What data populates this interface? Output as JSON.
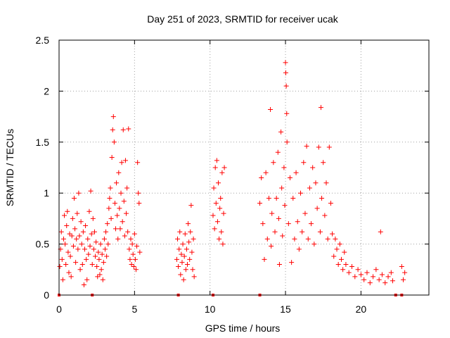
{
  "chart_data": {
    "type": "scatter",
    "title": "Day 251 of 2023, SRMTID for receiver ucak",
    "xlabel": "GPS time / hours",
    "ylabel": "SRMTID / TECUs",
    "xlim": [
      0,
      24.5
    ],
    "ylim": [
      0,
      2.5
    ],
    "xticks": [
      0,
      5,
      10,
      15,
      20
    ],
    "xtick_labels": [
      "0",
      "5",
      "10",
      "15",
      "20"
    ],
    "yticks": [
      0,
      0.5,
      1,
      1.5,
      2,
      2.5
    ],
    "ytick_labels": [
      "0",
      "0.5",
      "1",
      "1.5",
      "2",
      "2.5"
    ],
    "grid": true,
    "marker": "plus",
    "series": [
      {
        "name": "SRMTID",
        "color": "#ff0000",
        "points": [
          [
            0.05,
            0.28
          ],
          [
            0.1,
            0.45
          ],
          [
            0.15,
            0.62
          ],
          [
            0.2,
            0.35
          ],
          [
            0.25,
            0.15
          ],
          [
            0.3,
            0.55
          ],
          [
            0.35,
            0.78
          ],
          [
            0.4,
            0.5
          ],
          [
            0.45,
            0.3
          ],
          [
            0.5,
            0.68
          ],
          [
            0.55,
            0.82
          ],
          [
            0.6,
            0.42
          ],
          [
            0.65,
            0.22
          ],
          [
            0.7,
            0.6
          ],
          [
            0.75,
            0.38
          ],
          [
            0.8,
            0.18
          ],
          [
            0.85,
            0.58
          ],
          [
            0.9,
            0.75
          ],
          [
            0.95,
            0.48
          ],
          [
            1.0,
            0.95
          ],
          [
            1.05,
            0.65
          ],
          [
            1.1,
            0.32
          ],
          [
            1.15,
            0.55
          ],
          [
            1.2,
            0.8
          ],
          [
            1.25,
            0.45
          ],
          [
            1.3,
            1.0
          ],
          [
            1.35,
            0.58
          ],
          [
            1.4,
            0.25
          ],
          [
            1.45,
            0.72
          ],
          [
            1.5,
            0.5
          ],
          [
            1.55,
            0.3
          ],
          [
            1.6,
            0.62
          ],
          [
            1.65,
            0.1
          ],
          [
            1.7,
            0.45
          ],
          [
            1.75,
            0.68
          ],
          [
            1.8,
            0.35
          ],
          [
            1.85,
            0.15
          ],
          [
            1.9,
            0.55
          ],
          [
            1.95,
            0.4
          ],
          [
            2.0,
            0.82
          ],
          [
            2.05,
            0.48
          ],
          [
            2.1,
            1.02
          ],
          [
            2.15,
            0.6
          ],
          [
            2.2,
            0.3
          ],
          [
            2.25,
            0.75
          ],
          [
            2.3,
            0.45
          ],
          [
            2.35,
            0.62
          ],
          [
            2.4,
            0.38
          ],
          [
            2.45,
            0.52
          ],
          [
            2.5,
            0.28
          ],
          [
            2.55,
            0.18
          ],
          [
            2.6,
            0.42
          ],
          [
            2.65,
            0.35
          ],
          [
            2.7,
            0.2
          ],
          [
            2.75,
            0.5
          ],
          [
            2.8,
            0.25
          ],
          [
            2.85,
            0.4
          ],
          [
            2.9,
            0.15
          ],
          [
            2.95,
            0.32
          ],
          [
            3.0,
            0.55
          ],
          [
            3.05,
            0.45
          ],
          [
            3.1,
            0.62
          ],
          [
            3.15,
            0.38
          ],
          [
            3.2,
            0.7
          ],
          [
            3.25,
            0.5
          ],
          [
            3.3,
            0.85
          ],
          [
            3.35,
            0.95
          ],
          [
            3.4,
            1.05
          ],
          [
            3.45,
            0.75
          ],
          [
            3.5,
            1.35
          ],
          [
            3.55,
            1.62
          ],
          [
            3.6,
            1.75
          ],
          [
            3.65,
            1.5
          ],
          [
            3.7,
            0.9
          ],
          [
            3.75,
            0.65
          ],
          [
            3.8,
            1.1
          ],
          [
            3.85,
            0.78
          ],
          [
            3.9,
            0.55
          ],
          [
            3.95,
            1.2
          ],
          [
            4.0,
            0.85
          ],
          [
            4.05,
            0.65
          ],
          [
            4.1,
            1.0
          ],
          [
            4.15,
            1.3
          ],
          [
            4.2,
            0.72
          ],
          [
            4.25,
            1.62
          ],
          [
            4.3,
            0.92
          ],
          [
            4.35,
            0.58
          ],
          [
            4.4,
            1.32
          ],
          [
            4.45,
            0.8
          ],
          [
            4.5,
            1.05
          ],
          [
            4.55,
            0.62
          ],
          [
            4.6,
            1.63
          ],
          [
            4.65,
            0.45
          ],
          [
            4.7,
            0.35
          ],
          [
            4.75,
            0.55
          ],
          [
            4.8,
            0.3
          ],
          [
            4.85,
            0.5
          ],
          [
            4.9,
            0.4
          ],
          [
            4.95,
            0.28
          ],
          [
            5.0,
            0.6
          ],
          [
            5.05,
            0.35
          ],
          [
            5.1,
            0.25
          ],
          [
            5.15,
            0.48
          ],
          [
            5.2,
            1.3
          ],
          [
            5.25,
            1.0
          ],
          [
            5.3,
            0.9
          ],
          [
            5.35,
            0.42
          ],
          [
            7.8,
            0.35
          ],
          [
            7.85,
            0.55
          ],
          [
            7.9,
            0.28
          ],
          [
            7.95,
            0.45
          ],
          [
            8.0,
            0.62
          ],
          [
            8.05,
            0.2
          ],
          [
            8.1,
            0.4
          ],
          [
            8.15,
            0.32
          ],
          [
            8.2,
            0.5
          ],
          [
            8.25,
            0.15
          ],
          [
            8.3,
            0.38
          ],
          [
            8.35,
            0.6
          ],
          [
            8.4,
            0.25
          ],
          [
            8.45,
            0.45
          ],
          [
            8.5,
            0.3
          ],
          [
            8.55,
            0.7
          ],
          [
            8.6,
            0.52
          ],
          [
            8.65,
            0.35
          ],
          [
            8.7,
            0.62
          ],
          [
            8.75,
            0.88
          ],
          [
            8.8,
            0.42
          ],
          [
            8.85,
            0.25
          ],
          [
            8.9,
            0.55
          ],
          [
            8.95,
            0.18
          ],
          [
            10.2,
            0.78
          ],
          [
            10.25,
            1.05
          ],
          [
            10.3,
            0.65
          ],
          [
            10.35,
            1.25
          ],
          [
            10.4,
            0.9
          ],
          [
            10.45,
            1.32
          ],
          [
            10.5,
            0.72
          ],
          [
            10.55,
            1.1
          ],
          [
            10.6,
            0.55
          ],
          [
            10.65,
            0.85
          ],
          [
            10.7,
            0.95
          ],
          [
            10.75,
            0.62
          ],
          [
            10.8,
            1.2
          ],
          [
            10.85,
            0.5
          ],
          [
            10.9,
            0.8
          ],
          [
            10.95,
            1.25
          ],
          [
            13.3,
            0.9
          ],
          [
            13.4,
            1.15
          ],
          [
            13.5,
            0.7
          ],
          [
            13.6,
            0.35
          ],
          [
            13.7,
            1.2
          ],
          [
            13.8,
            0.55
          ],
          [
            13.9,
            0.95
          ],
          [
            14.0,
            1.82
          ],
          [
            14.05,
            0.48
          ],
          [
            14.1,
            0.8
          ],
          [
            14.2,
            1.3
          ],
          [
            14.3,
            0.62
          ],
          [
            14.4,
            0.95
          ],
          [
            14.5,
            1.4
          ],
          [
            14.55,
            0.75
          ],
          [
            14.6,
            0.3
          ],
          [
            14.7,
            1.6
          ],
          [
            14.75,
            1.05
          ],
          [
            14.8,
            0.58
          ],
          [
            14.9,
            1.25
          ],
          [
            14.95,
            0.88
          ],
          [
            15.0,
            2.28
          ],
          [
            15.02,
            2.18
          ],
          [
            15.05,
            2.05
          ],
          [
            15.08,
            1.78
          ],
          [
            15.1,
            1.5
          ],
          [
            15.2,
            0.7
          ],
          [
            15.3,
            1.15
          ],
          [
            15.4,
            0.32
          ],
          [
            15.5,
            0.95
          ],
          [
            15.6,
            0.55
          ],
          [
            15.7,
            1.2
          ],
          [
            15.8,
            0.72
          ],
          [
            15.9,
            0.45
          ],
          [
            16.0,
            1.0
          ],
          [
            16.1,
            0.62
          ],
          [
            16.2,
            1.3
          ],
          [
            16.3,
            0.8
          ],
          [
            16.4,
            1.46
          ],
          [
            16.5,
            0.55
          ],
          [
            16.6,
            1.05
          ],
          [
            16.7,
            0.7
          ],
          [
            16.8,
            1.25
          ],
          [
            16.9,
            0.5
          ],
          [
            17.0,
            1.1
          ],
          [
            17.1,
            0.85
          ],
          [
            17.2,
            1.45
          ],
          [
            17.3,
            0.62
          ],
          [
            17.35,
            1.84
          ],
          [
            17.4,
            0.95
          ],
          [
            17.5,
            1.3
          ],
          [
            17.6,
            0.78
          ],
          [
            17.7,
            1.1
          ],
          [
            17.8,
            0.55
          ],
          [
            17.9,
            1.45
          ],
          [
            18.0,
            0.9
          ],
          [
            18.1,
            0.6
          ],
          [
            18.2,
            0.38
          ],
          [
            18.3,
            0.55
          ],
          [
            18.4,
            0.45
          ],
          [
            18.5,
            0.3
          ],
          [
            18.6,
            0.5
          ],
          [
            18.7,
            0.35
          ],
          [
            18.8,
            0.25
          ],
          [
            18.9,
            0.42
          ],
          [
            19.0,
            0.3
          ],
          [
            19.2,
            0.22
          ],
          [
            19.4,
            0.28
          ],
          [
            19.6,
            0.18
          ],
          [
            19.8,
            0.25
          ],
          [
            20.0,
            0.2
          ],
          [
            20.2,
            0.15
          ],
          [
            20.4,
            0.22
          ],
          [
            20.6,
            0.12
          ],
          [
            20.8,
            0.18
          ],
          [
            21.0,
            0.25
          ],
          [
            21.2,
            0.15
          ],
          [
            21.3,
            0.62
          ],
          [
            21.4,
            0.2
          ],
          [
            21.6,
            0.12
          ],
          [
            21.8,
            0.18
          ],
          [
            22.0,
            0.22
          ],
          [
            22.1,
            0.14
          ],
          [
            22.7,
            0.28
          ],
          [
            22.8,
            0.15
          ],
          [
            22.9,
            0.22
          ]
        ]
      }
    ],
    "zero_markers": [
      0.0,
      2.2,
      7.9,
      10.2,
      13.3,
      22.3,
      22.7
    ]
  }
}
